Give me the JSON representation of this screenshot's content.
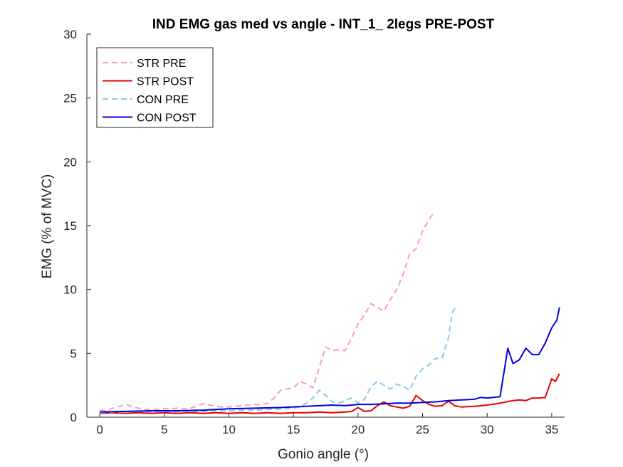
{
  "chart_data": {
    "type": "line",
    "title": "IND EMG gas med vs angle - INT_1_ 2legs PRE-POST",
    "xlabel": "Gonio angle (°)",
    "ylabel": "EMG (% of MVC)",
    "xlim": [
      -1,
      36
    ],
    "ylim": [
      0,
      30
    ],
    "xticks": [
      0,
      5,
      10,
      15,
      20,
      25,
      30,
      35
    ],
    "yticks": [
      0,
      5,
      10,
      15,
      20,
      25,
      30
    ],
    "grid": false,
    "legend_location": "top-left",
    "series": [
      {
        "name": "STR PRE",
        "color": "#FF99BB",
        "style": "dashed",
        "points": [
          [
            0,
            0.55
          ],
          [
            0.5,
            0.5
          ],
          [
            1,
            0.7
          ],
          [
            1.5,
            0.85
          ],
          [
            2,
            1.0
          ],
          [
            2.5,
            0.85
          ],
          [
            3,
            0.7
          ],
          [
            3.5,
            0.6
          ],
          [
            4,
            0.6
          ],
          [
            4.5,
            0.6
          ],
          [
            5,
            0.65
          ],
          [
            5.5,
            0.65
          ],
          [
            6,
            0.7
          ],
          [
            6.5,
            0.65
          ],
          [
            7,
            0.7
          ],
          [
            7.5,
            0.85
          ],
          [
            8,
            1.05
          ],
          [
            8.5,
            0.95
          ],
          [
            9,
            0.85
          ],
          [
            9.5,
            0.8
          ],
          [
            10,
            0.8
          ],
          [
            10.5,
            0.85
          ],
          [
            11,
            0.9
          ],
          [
            11.5,
            0.95
          ],
          [
            12,
            1.0
          ],
          [
            12.5,
            0.95
          ],
          [
            13,
            1.1
          ],
          [
            13.5,
            1.5
          ],
          [
            14,
            2.1
          ],
          [
            14.5,
            2.2
          ],
          [
            15,
            2.3
          ],
          [
            15.5,
            2.8
          ],
          [
            16,
            2.6
          ],
          [
            16.5,
            2.3
          ],
          [
            17,
            3.9
          ],
          [
            17.5,
            5.5
          ],
          [
            18,
            5.2
          ],
          [
            18.5,
            5.3
          ],
          [
            19,
            5.2
          ],
          [
            19.5,
            6.2
          ],
          [
            20,
            7.3
          ],
          [
            20.5,
            8.0
          ],
          [
            21,
            8.9
          ],
          [
            21.5,
            8.6
          ],
          [
            22,
            8.3
          ],
          [
            22.5,
            9.2
          ],
          [
            23,
            10.0
          ],
          [
            23.5,
            11.2
          ],
          [
            24,
            12.8
          ],
          [
            24.5,
            13.2
          ],
          [
            25,
            14.6
          ],
          [
            25.5,
            15.5
          ],
          [
            25.8,
            15.9
          ]
        ]
      },
      {
        "name": "STR POST",
        "color": "#E30000",
        "style": "solid",
        "points": [
          [
            0,
            0.3
          ],
          [
            1,
            0.35
          ],
          [
            2,
            0.3
          ],
          [
            3,
            0.35
          ],
          [
            4,
            0.3
          ],
          [
            5,
            0.35
          ],
          [
            6,
            0.3
          ],
          [
            7,
            0.35
          ],
          [
            8,
            0.3
          ],
          [
            9,
            0.35
          ],
          [
            10,
            0.3
          ],
          [
            11,
            0.35
          ],
          [
            12,
            0.3
          ],
          [
            13,
            0.35
          ],
          [
            14,
            0.3
          ],
          [
            15,
            0.35
          ],
          [
            16,
            0.35
          ],
          [
            17,
            0.4
          ],
          [
            18,
            0.35
          ],
          [
            19,
            0.4
          ],
          [
            19.5,
            0.45
          ],
          [
            20,
            0.75
          ],
          [
            20.5,
            0.45
          ],
          [
            21,
            0.5
          ],
          [
            21.5,
            0.9
          ],
          [
            22,
            1.2
          ],
          [
            22.5,
            0.9
          ],
          [
            23,
            0.8
          ],
          [
            23.5,
            0.7
          ],
          [
            24,
            0.85
          ],
          [
            24.5,
            1.7
          ],
          [
            25,
            1.3
          ],
          [
            25.5,
            1.0
          ],
          [
            26,
            0.85
          ],
          [
            26.5,
            0.9
          ],
          [
            27,
            1.25
          ],
          [
            27.5,
            0.9
          ],
          [
            28,
            0.8
          ],
          [
            29,
            0.85
          ],
          [
            30,
            0.95
          ],
          [
            31,
            1.1
          ],
          [
            31.5,
            1.2
          ],
          [
            32,
            1.3
          ],
          [
            32.5,
            1.35
          ],
          [
            33,
            1.3
          ],
          [
            33.5,
            1.5
          ],
          [
            34,
            1.5
          ],
          [
            34.5,
            1.55
          ],
          [
            35,
            3.0
          ],
          [
            35.3,
            2.8
          ],
          [
            35.6,
            3.4
          ]
        ]
      },
      {
        "name": "CON PRE",
        "color": "#88C8F0",
        "style": "dashed",
        "points": [
          [
            0,
            0.35
          ],
          [
            1,
            0.4
          ],
          [
            2,
            0.4
          ],
          [
            3,
            0.45
          ],
          [
            4,
            0.4
          ],
          [
            5,
            0.45
          ],
          [
            6,
            0.4
          ],
          [
            7,
            0.45
          ],
          [
            8,
            0.45
          ],
          [
            9,
            0.5
          ],
          [
            10,
            0.5
          ],
          [
            11,
            0.55
          ],
          [
            12,
            0.55
          ],
          [
            13,
            0.6
          ],
          [
            14,
            0.65
          ],
          [
            15,
            0.7
          ],
          [
            15.5,
            0.8
          ],
          [
            16,
            1.1
          ],
          [
            16.5,
            1.5
          ],
          [
            17,
            2.1
          ],
          [
            17.5,
            1.7
          ],
          [
            18,
            1.2
          ],
          [
            18.5,
            1.1
          ],
          [
            19,
            1.3
          ],
          [
            19.5,
            1.5
          ],
          [
            20,
            1.1
          ],
          [
            20.5,
            1.4
          ],
          [
            21,
            2.4
          ],
          [
            21.5,
            2.8
          ],
          [
            22,
            2.5
          ],
          [
            22.5,
            2.2
          ],
          [
            23,
            2.6
          ],
          [
            23.5,
            2.4
          ],
          [
            24,
            2.1
          ],
          [
            24.5,
            3.2
          ],
          [
            25,
            3.8
          ],
          [
            25.5,
            4.1
          ],
          [
            26,
            4.6
          ],
          [
            26.5,
            4.6
          ],
          [
            27,
            6.2
          ],
          [
            27.3,
            8.2
          ],
          [
            27.6,
            8.7
          ]
        ]
      },
      {
        "name": "CON POST",
        "color": "#0000E0",
        "style": "solid",
        "points": [
          [
            0,
            0.4
          ],
          [
            2,
            0.45
          ],
          [
            4,
            0.5
          ],
          [
            6,
            0.5
          ],
          [
            8,
            0.55
          ],
          [
            10,
            0.65
          ],
          [
            12,
            0.7
          ],
          [
            14,
            0.75
          ],
          [
            16,
            0.85
          ],
          [
            18,
            0.95
          ],
          [
            19,
            0.9
          ],
          [
            20,
            1.0
          ],
          [
            21,
            1.0
          ],
          [
            22,
            1.05
          ],
          [
            23,
            1.1
          ],
          [
            24,
            1.1
          ],
          [
            25,
            1.15
          ],
          [
            26,
            1.2
          ],
          [
            27,
            1.3
          ],
          [
            28,
            1.35
          ],
          [
            29,
            1.4
          ],
          [
            29.5,
            1.55
          ],
          [
            30,
            1.5
          ],
          [
            30.5,
            1.55
          ],
          [
            31,
            1.6
          ],
          [
            31.3,
            3.5
          ],
          [
            31.6,
            5.4
          ],
          [
            32,
            4.2
          ],
          [
            32.5,
            4.5
          ],
          [
            33,
            5.4
          ],
          [
            33.5,
            4.9
          ],
          [
            34,
            4.9
          ],
          [
            34.5,
            5.8
          ],
          [
            35,
            7.0
          ],
          [
            35.4,
            7.6
          ],
          [
            35.6,
            8.6
          ]
        ]
      }
    ]
  }
}
